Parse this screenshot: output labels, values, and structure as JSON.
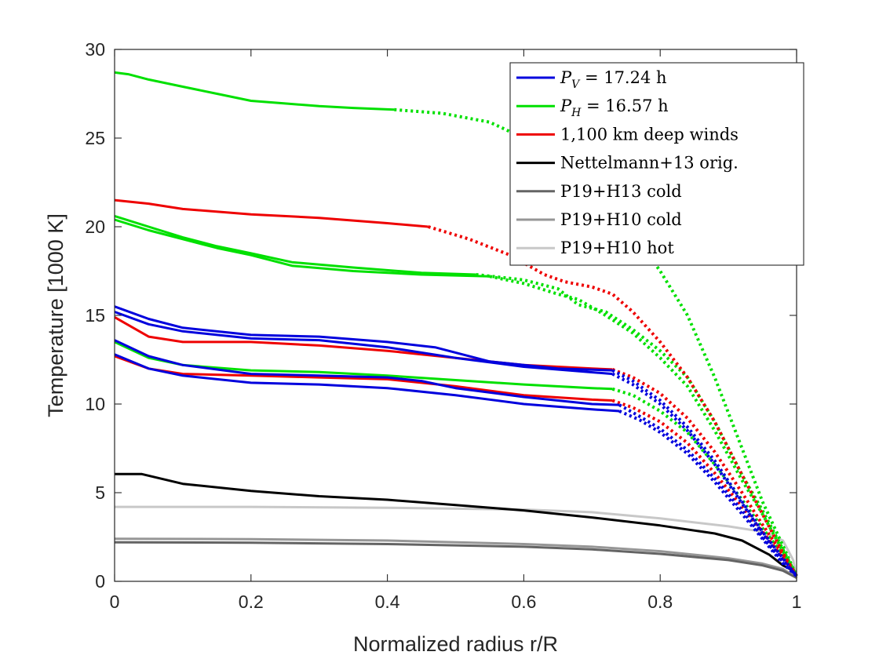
{
  "chart_data": {
    "type": "line",
    "title": "",
    "xlabel": "Normalized radius r/R",
    "ylabel": "Temperature [1000 K]",
    "xlim": [
      0,
      1
    ],
    "ylim": [
      0,
      30
    ],
    "xticks": [
      "0",
      "0.2",
      "0.4",
      "0.6",
      "0.8",
      "1"
    ],
    "yticks": [
      "0",
      "5",
      "10",
      "15",
      "20",
      "25",
      "30"
    ],
    "grid": false,
    "legend_position": "top-right",
    "legend": [
      {
        "var": "P",
        "sub": "V",
        "rest": " = 17.24 h",
        "color": "#0000dd"
      },
      {
        "var": "P",
        "sub": "H",
        "rest": " = 16.57 h",
        "color": "#00e000"
      },
      {
        "text": "1,100 km deep winds",
        "color": "#ee0000"
      },
      {
        "text": "Nettelmann+13 orig.",
        "color": "#000000"
      },
      {
        "text": "P19+H13 cold",
        "color": "#646464"
      },
      {
        "text": "P19+H10 cold",
        "color": "#969696"
      },
      {
        "text": "P19+H10 hot",
        "color": "#c8c8c8"
      }
    ],
    "series": [
      {
        "name": "P19+H10 hot",
        "color": "#c8c8c8",
        "style": "solid",
        "solid": [
          [
            0,
            4.2
          ],
          [
            0.2,
            4.2
          ],
          [
            0.4,
            4.15
          ],
          [
            0.6,
            4.05
          ],
          [
            0.7,
            3.9
          ],
          [
            0.8,
            3.55
          ],
          [
            0.9,
            3.1
          ],
          [
            0.95,
            2.8
          ],
          [
            0.98,
            2.3
          ],
          [
            0.995,
            1.2
          ],
          [
            1,
            0.2
          ]
        ]
      },
      {
        "name": "P19+H10 cold",
        "color": "#969696",
        "style": "solid",
        "solid": [
          [
            0,
            2.4
          ],
          [
            0.2,
            2.38
          ],
          [
            0.4,
            2.3
          ],
          [
            0.6,
            2.1
          ],
          [
            0.7,
            1.95
          ],
          [
            0.8,
            1.7
          ],
          [
            0.9,
            1.3
          ],
          [
            0.95,
            1.0
          ],
          [
            0.98,
            0.7
          ],
          [
            1,
            0.2
          ]
        ]
      },
      {
        "name": "P19+H13 cold",
        "color": "#646464",
        "style": "solid",
        "solid": [
          [
            0,
            2.2
          ],
          [
            0.2,
            2.18
          ],
          [
            0.4,
            2.1
          ],
          [
            0.6,
            1.95
          ],
          [
            0.7,
            1.8
          ],
          [
            0.8,
            1.55
          ],
          [
            0.9,
            1.2
          ],
          [
            0.95,
            0.9
          ],
          [
            0.98,
            0.6
          ],
          [
            1,
            0.2
          ]
        ]
      },
      {
        "name": "Nettelmann+13 orig.",
        "color": "#000000",
        "style": "solid",
        "solid": [
          [
            0,
            6.05
          ],
          [
            0.04,
            6.05
          ],
          [
            0.1,
            5.5
          ],
          [
            0.2,
            5.1
          ],
          [
            0.3,
            4.8
          ],
          [
            0.4,
            4.6
          ],
          [
            0.5,
            4.3
          ],
          [
            0.6,
            4.0
          ],
          [
            0.7,
            3.6
          ],
          [
            0.8,
            3.15
          ],
          [
            0.88,
            2.7
          ],
          [
            0.92,
            2.3
          ],
          [
            0.96,
            1.5
          ],
          [
            0.98,
            0.9
          ],
          [
            1,
            0.5
          ]
        ]
      },
      {
        "name": "P_H = 16.57 h",
        "color": "#00e000",
        "solid": [
          [
            0,
            28.7
          ],
          [
            0.02,
            28.6
          ],
          [
            0.05,
            28.3
          ],
          [
            0.1,
            27.9
          ],
          [
            0.15,
            27.5
          ],
          [
            0.2,
            27.1
          ],
          [
            0.25,
            26.95
          ],
          [
            0.3,
            26.8
          ],
          [
            0.35,
            26.7
          ],
          [
            0.41,
            26.6
          ]
        ],
        "dotted": [
          [
            0.41,
            26.6
          ],
          [
            0.48,
            26.4
          ],
          [
            0.55,
            25.9
          ],
          [
            0.6,
            25.0
          ],
          [
            0.65,
            24.2
          ],
          [
            0.7,
            22.8
          ],
          [
            0.75,
            20.2
          ],
          [
            0.8,
            17.5
          ],
          [
            0.84,
            15.0
          ],
          [
            0.88,
            11.5
          ],
          [
            0.92,
            7.5
          ],
          [
            0.95,
            4.5
          ],
          [
            0.98,
            2.0
          ],
          [
            1,
            0.3
          ]
        ]
      },
      {
        "name": "P_H = 16.57 h",
        "color": "#00e000",
        "solid": [
          [
            0,
            20.6
          ],
          [
            0.05,
            20.0
          ],
          [
            0.1,
            19.4
          ],
          [
            0.15,
            18.9
          ],
          [
            0.2,
            18.5
          ],
          [
            0.26,
            18.0
          ],
          [
            0.35,
            17.7
          ],
          [
            0.45,
            17.4
          ],
          [
            0.53,
            17.3
          ]
        ],
        "dotted": [
          [
            0.53,
            17.3
          ],
          [
            0.6,
            17.0
          ],
          [
            0.65,
            16.5
          ],
          [
            0.68,
            15.6
          ],
          [
            0.72,
            15.2
          ],
          [
            0.76,
            14.2
          ],
          [
            0.8,
            13.0
          ],
          [
            0.84,
            11.5
          ],
          [
            0.88,
            9.0
          ],
          [
            0.92,
            6.0
          ],
          [
            0.95,
            4.0
          ],
          [
            0.98,
            1.8
          ],
          [
            1,
            0.3
          ]
        ]
      },
      {
        "name": "P_H = 16.57 h",
        "color": "#00e000",
        "solid": [
          [
            0,
            20.4
          ],
          [
            0.05,
            19.8
          ],
          [
            0.1,
            19.3
          ],
          [
            0.15,
            18.8
          ],
          [
            0.2,
            18.4
          ],
          [
            0.26,
            17.8
          ],
          [
            0.35,
            17.5
          ],
          [
            0.45,
            17.3
          ],
          [
            0.55,
            17.2
          ]
        ],
        "dotted": [
          [
            0.55,
            17.2
          ],
          [
            0.6,
            16.8
          ],
          [
            0.65,
            16.2
          ],
          [
            0.68,
            15.9
          ],
          [
            0.72,
            15.0
          ],
          [
            0.76,
            14.0
          ],
          [
            0.8,
            12.6
          ],
          [
            0.84,
            11.0
          ],
          [
            0.88,
            8.5
          ],
          [
            0.92,
            5.7
          ],
          [
            0.95,
            3.8
          ],
          [
            0.98,
            1.7
          ],
          [
            1,
            0.3
          ]
        ]
      },
      {
        "name": "P_H = 16.57 h",
        "color": "#00e000",
        "solid": [
          [
            0,
            13.5
          ],
          [
            0.05,
            12.6
          ],
          [
            0.1,
            12.2
          ],
          [
            0.2,
            11.9
          ],
          [
            0.3,
            11.8
          ],
          [
            0.4,
            11.6
          ],
          [
            0.5,
            11.35
          ],
          [
            0.6,
            11.1
          ],
          [
            0.7,
            10.9
          ],
          [
            0.73,
            10.85
          ]
        ],
        "dotted": [
          [
            0.73,
            10.85
          ],
          [
            0.76,
            10.5
          ],
          [
            0.8,
            9.6
          ],
          [
            0.84,
            8.4
          ],
          [
            0.88,
            6.6
          ],
          [
            0.92,
            4.6
          ],
          [
            0.95,
            3.0
          ],
          [
            0.98,
            1.5
          ],
          [
            1,
            0.3
          ]
        ]
      },
      {
        "name": "1,100 km deep winds",
        "color": "#ee0000",
        "solid": [
          [
            0,
            21.5
          ],
          [
            0.05,
            21.3
          ],
          [
            0.1,
            21.0
          ],
          [
            0.2,
            20.7
          ],
          [
            0.3,
            20.5
          ],
          [
            0.4,
            20.2
          ],
          [
            0.46,
            20.0
          ]
        ],
        "dotted": [
          [
            0.46,
            20.0
          ],
          [
            0.52,
            19.3
          ],
          [
            0.58,
            18.4
          ],
          [
            0.63,
            17.3
          ],
          [
            0.66,
            16.9
          ],
          [
            0.7,
            16.6
          ],
          [
            0.73,
            16.2
          ],
          [
            0.76,
            15.2
          ],
          [
            0.8,
            13.5
          ],
          [
            0.84,
            11.5
          ],
          [
            0.88,
            9.0
          ],
          [
            0.92,
            6.0
          ],
          [
            0.95,
            3.8
          ],
          [
            0.98,
            1.6
          ],
          [
            1,
            0.3
          ]
        ]
      },
      {
        "name": "1,100 km deep winds",
        "color": "#ee0000",
        "solid": [
          [
            0,
            14.9
          ],
          [
            0.05,
            13.8
          ],
          [
            0.1,
            13.5
          ],
          [
            0.2,
            13.5
          ],
          [
            0.3,
            13.3
          ],
          [
            0.4,
            13.0
          ],
          [
            0.5,
            12.6
          ],
          [
            0.6,
            12.2
          ],
          [
            0.7,
            12.0
          ],
          [
            0.73,
            11.95
          ]
        ],
        "dotted": [
          [
            0.73,
            11.95
          ],
          [
            0.76,
            11.5
          ],
          [
            0.8,
            10.6
          ],
          [
            0.84,
            9.2
          ],
          [
            0.88,
            7.3
          ],
          [
            0.92,
            5.0
          ],
          [
            0.95,
            3.2
          ],
          [
            0.98,
            1.5
          ],
          [
            1,
            0.3
          ]
        ]
      },
      {
        "name": "1,100 km deep winds",
        "color": "#ee0000",
        "solid": [
          [
            0,
            12.7
          ],
          [
            0.05,
            12.0
          ],
          [
            0.1,
            11.7
          ],
          [
            0.2,
            11.6
          ],
          [
            0.3,
            11.5
          ],
          [
            0.4,
            11.4
          ],
          [
            0.5,
            11.0
          ],
          [
            0.6,
            10.5
          ],
          [
            0.7,
            10.25
          ],
          [
            0.73,
            10.2
          ]
        ],
        "dotted": [
          [
            0.73,
            10.2
          ],
          [
            0.76,
            9.8
          ],
          [
            0.8,
            9.0
          ],
          [
            0.84,
            7.8
          ],
          [
            0.88,
            6.1
          ],
          [
            0.92,
            4.2
          ],
          [
            0.95,
            2.8
          ],
          [
            0.98,
            1.3
          ],
          [
            1,
            0.3
          ]
        ]
      },
      {
        "name": "P_V = 17.24 h",
        "color": "#0000dd",
        "solid": [
          [
            0,
            15.5
          ],
          [
            0.05,
            14.8
          ],
          [
            0.1,
            14.3
          ],
          [
            0.2,
            13.9
          ],
          [
            0.3,
            13.8
          ],
          [
            0.4,
            13.5
          ],
          [
            0.47,
            13.2
          ],
          [
            0.55,
            12.4
          ],
          [
            0.65,
            12.0
          ],
          [
            0.73,
            11.9
          ]
        ],
        "dotted": [
          [
            0.73,
            11.9
          ],
          [
            0.76,
            11.3
          ],
          [
            0.8,
            10.2
          ],
          [
            0.84,
            8.7
          ],
          [
            0.88,
            6.8
          ],
          [
            0.92,
            4.5
          ],
          [
            0.95,
            2.8
          ],
          [
            0.98,
            1.3
          ],
          [
            1,
            0.3
          ]
        ]
      },
      {
        "name": "P_V = 17.24 h",
        "color": "#0000dd",
        "solid": [
          [
            0,
            15.2
          ],
          [
            0.05,
            14.5
          ],
          [
            0.1,
            14.1
          ],
          [
            0.2,
            13.7
          ],
          [
            0.3,
            13.6
          ],
          [
            0.4,
            13.2
          ],
          [
            0.5,
            12.6
          ],
          [
            0.6,
            12.1
          ],
          [
            0.73,
            11.7
          ]
        ],
        "dotted": [
          [
            0.73,
            11.7
          ],
          [
            0.76,
            11.1
          ],
          [
            0.8,
            10.0
          ],
          [
            0.84,
            8.5
          ],
          [
            0.88,
            6.6
          ],
          [
            0.92,
            4.4
          ],
          [
            0.95,
            2.7
          ],
          [
            0.98,
            1.2
          ],
          [
            1,
            0.3
          ]
        ]
      },
      {
        "name": "P_V = 17.24 h",
        "color": "#0000dd",
        "solid": [
          [
            0,
            13.6
          ],
          [
            0.05,
            12.7
          ],
          [
            0.1,
            12.2
          ],
          [
            0.2,
            11.7
          ],
          [
            0.3,
            11.6
          ],
          [
            0.4,
            11.5
          ],
          [
            0.45,
            11.3
          ],
          [
            0.5,
            10.9
          ],
          [
            0.6,
            10.4
          ],
          [
            0.7,
            10.0
          ],
          [
            0.74,
            9.95
          ]
        ],
        "dotted": [
          [
            0.74,
            9.95
          ],
          [
            0.77,
            9.3
          ],
          [
            0.8,
            8.6
          ],
          [
            0.84,
            7.4
          ],
          [
            0.88,
            5.8
          ],
          [
            0.92,
            4.0
          ],
          [
            0.95,
            2.5
          ],
          [
            0.98,
            1.1
          ],
          [
            1,
            0.3
          ]
        ]
      },
      {
        "name": "P_V = 17.24 h",
        "color": "#0000dd",
        "solid": [
          [
            0,
            12.8
          ],
          [
            0.05,
            12.0
          ],
          [
            0.1,
            11.6
          ],
          [
            0.2,
            11.2
          ],
          [
            0.3,
            11.1
          ],
          [
            0.4,
            10.9
          ],
          [
            0.5,
            10.5
          ],
          [
            0.6,
            10.0
          ],
          [
            0.7,
            9.7
          ],
          [
            0.74,
            9.6
          ]
        ],
        "dotted": [
          [
            0.74,
            9.6
          ],
          [
            0.77,
            9.1
          ],
          [
            0.8,
            8.4
          ],
          [
            0.84,
            7.2
          ],
          [
            0.88,
            5.6
          ],
          [
            0.92,
            3.8
          ],
          [
            0.95,
            2.4
          ],
          [
            0.98,
            1.0
          ],
          [
            1,
            0.3
          ]
        ]
      }
    ]
  }
}
